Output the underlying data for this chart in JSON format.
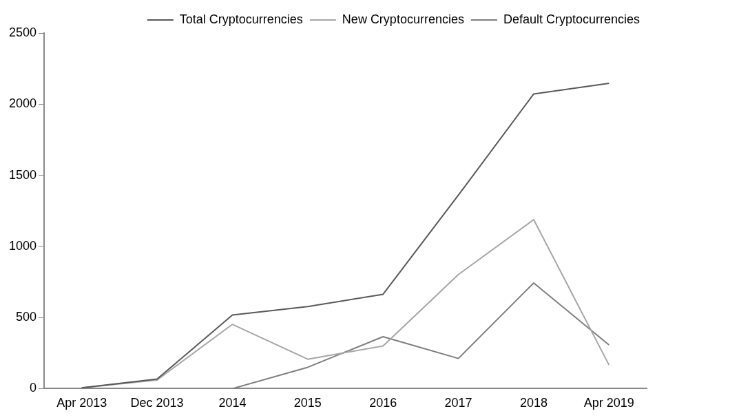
{
  "chart_data": {
    "type": "line",
    "categories": [
      "Apr 2013",
      "Dec 2013",
      "2014",
      "2015",
      "2016",
      "2017",
      "2018",
      "Apr 2019"
    ],
    "series": [
      {
        "name": "Total Cryptocurrencies",
        "color": "#595959",
        "values": [
          5,
          67,
          517,
          577,
          663,
          1360,
          2072,
          2147
        ]
      },
      {
        "name": "New Cryptocurrencies",
        "color": "#a6a6a6",
        "values": [
          5,
          60,
          452,
          207,
          300,
          802,
          1188,
          166
        ]
      },
      {
        "name": "Default Cryptocurrencies",
        "color": "#7f7f7f",
        "values": [
          null,
          null,
          0,
          150,
          365,
          212,
          743,
          307
        ]
      }
    ],
    "ylim": [
      0,
      2500
    ],
    "yticks": [
      0,
      500,
      1000,
      1500,
      2000,
      2500
    ],
    "grid": false,
    "legend": "top right",
    "marker": "none",
    "line_style": "solid"
  }
}
